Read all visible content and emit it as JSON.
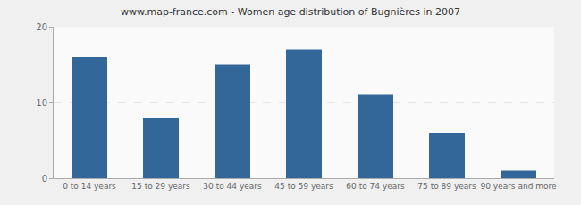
{
  "chart_data": {
    "type": "bar",
    "title": "www.map-france.com - Women age distribution of Bugnières in 2007",
    "categories": [
      "0 to 14 years",
      "15 to 29 years",
      "30 to 44 years",
      "45 to 59 years",
      "60 to 74 years",
      "75 to 89 years",
      "90 years and more"
    ],
    "values": [
      16,
      8,
      15,
      17,
      11,
      6,
      1
    ],
    "color": "#336699",
    "ylim": [
      0,
      20
    ],
    "yticks": [
      0,
      10,
      20
    ],
    "grid": true
  }
}
